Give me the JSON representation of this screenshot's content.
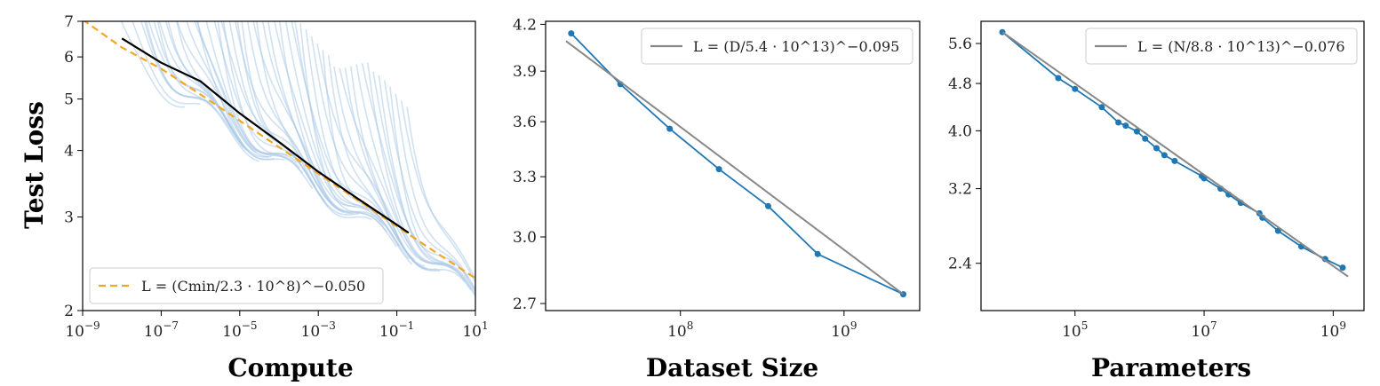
{
  "chart_data": [
    {
      "type": "line",
      "xlabel": "Compute",
      "ylabel": "Test Loss",
      "xscale": "log",
      "yscale": "log",
      "xlim": [
        1e-09,
        10
      ],
      "ylim": [
        2,
        7
      ],
      "xticks": [
        {
          "value": 1e-09,
          "base": "10",
          "exp": "−9"
        },
        {
          "value": 1e-07,
          "base": "10",
          "exp": "−7"
        },
        {
          "value": 1e-05,
          "base": "10",
          "exp": "−5"
        },
        {
          "value": 0.001,
          "base": "10",
          "exp": "−3"
        },
        {
          "value": 0.1,
          "base": "10",
          "exp": "−1"
        },
        {
          "value": 10,
          "base": "10",
          "exp": "1"
        }
      ],
      "yticks": [
        {
          "value": 2,
          "label": "2"
        },
        {
          "value": 3,
          "label": "3"
        },
        {
          "value": 4,
          "label": "4"
        },
        {
          "value": 5,
          "label": "5"
        },
        {
          "value": 6,
          "label": "6"
        },
        {
          "value": 7,
          "label": "7"
        }
      ],
      "legend": {
        "position": "lower-left",
        "text": "L = (Cmin/2.3 · 10^8)^−0.050"
      },
      "series": [
        {
          "kind": "fit-dashed",
          "color": "#f5a623",
          "x": [
            1e-09,
            1e-08,
            1e-07,
            1e-06,
            1e-05,
            0.0001,
            0.001,
            0.01,
            0.1,
            1,
            10
          ],
          "y": [
            7.05,
            6.25,
            5.7,
            5.1,
            4.55,
            4.06,
            3.62,
            3.23,
            2.88,
            2.57,
            2.3
          ]
        },
        {
          "kind": "frontier",
          "color": "#000000",
          "x": [
            1e-08,
            1e-07,
            1e-06,
            1e-05,
            0.0001,
            0.001,
            0.01,
            0.1,
            0.2
          ],
          "y": [
            6.5,
            5.85,
            5.4,
            4.7,
            4.15,
            3.65,
            3.25,
            2.9,
            2.8
          ]
        },
        {
          "kind": "curves",
          "color": "#a9c8e6",
          "count": 56
        }
      ]
    },
    {
      "type": "line",
      "xlabel": "Dataset Size",
      "xscale": "log",
      "yscale": "log",
      "xlim": [
        15000000.0,
        2900000000.0
      ],
      "ylim": [
        2.67,
        4.22
      ],
      "xticks": [
        {
          "value": 100000000.0,
          "base": "10",
          "exp": "8"
        },
        {
          "value": 1000000000.0,
          "base": "10",
          "exp": "9"
        }
      ],
      "yticks": [
        {
          "value": 2.7,
          "label": "2.7"
        },
        {
          "value": 3.0,
          "label": "3.0"
        },
        {
          "value": 3.3,
          "label": "3.3"
        },
        {
          "value": 3.6,
          "label": "3.6"
        },
        {
          "value": 3.9,
          "label": "3.9"
        },
        {
          "value": 4.2,
          "label": "4.2"
        }
      ],
      "legend": {
        "position": "top-right",
        "text": "L = (D/5.4 · 10^13)^−0.095"
      },
      "series": [
        {
          "kind": "data",
          "color": "#1f77b4",
          "x": [
            21500000.0,
            43000000.0,
            86000000.0,
            172000000.0,
            344000000.0,
            690000000.0,
            2300000000.0
          ],
          "y": [
            4.14,
            3.82,
            3.56,
            3.34,
            3.15,
            2.92,
            2.74
          ]
        },
        {
          "kind": "fit",
          "color": "#888888",
          "x": [
            20000000.0,
            2300000000.0
          ],
          "y": [
            4.09,
            2.74
          ]
        }
      ]
    },
    {
      "type": "line",
      "xlabel": "Parameters",
      "xscale": "log",
      "yscale": "log",
      "xlim": [
        3500.0,
        3000000000.0
      ],
      "ylim": [
        2.0,
        6.1
      ],
      "xticks": [
        {
          "value": 100000.0,
          "base": "10",
          "exp": "5"
        },
        {
          "value": 10000000.0,
          "base": "10",
          "exp": "7"
        },
        {
          "value": 1000000000.0,
          "base": "10",
          "exp": "9"
        }
      ],
      "yticks": [
        {
          "value": 2.4,
          "label": "2.4"
        },
        {
          "value": 3.2,
          "label": "3.2"
        },
        {
          "value": 4.0,
          "label": "4.0"
        },
        {
          "value": 4.8,
          "label": "4.8"
        },
        {
          "value": 5.6,
          "label": "5.6"
        }
      ],
      "legend": {
        "position": "top-right",
        "text": "L = (N/8.8 · 10^13)^−0.076"
      },
      "series": [
        {
          "kind": "data",
          "color": "#1f77b4",
          "x": [
            7500.0,
            55000.0,
            100000.0,
            260000.0,
            470000.0,
            610000.0,
            910000.0,
            1220000.0,
            1830000.0,
            2430000.0,
            3500000.0,
            9200000.0,
            10000000.0,
            18000000.0,
            24000000.0,
            37000000.0,
            72000000.0,
            80000000.0,
            140000000.0,
            320000000.0,
            750000000.0,
            1400000000.0
          ],
          "y": [
            5.85,
            4.9,
            4.7,
            4.38,
            4.13,
            4.08,
            3.99,
            3.88,
            3.74,
            3.64,
            3.56,
            3.36,
            3.33,
            3.2,
            3.13,
            3.03,
            2.91,
            2.86,
            2.72,
            2.56,
            2.44,
            2.36
          ]
        },
        {
          "kind": "fit",
          "color": "#888888",
          "x": [
            7500.0,
            1700000000.0
          ],
          "y": [
            5.85,
            2.28
          ]
        }
      ]
    }
  ]
}
